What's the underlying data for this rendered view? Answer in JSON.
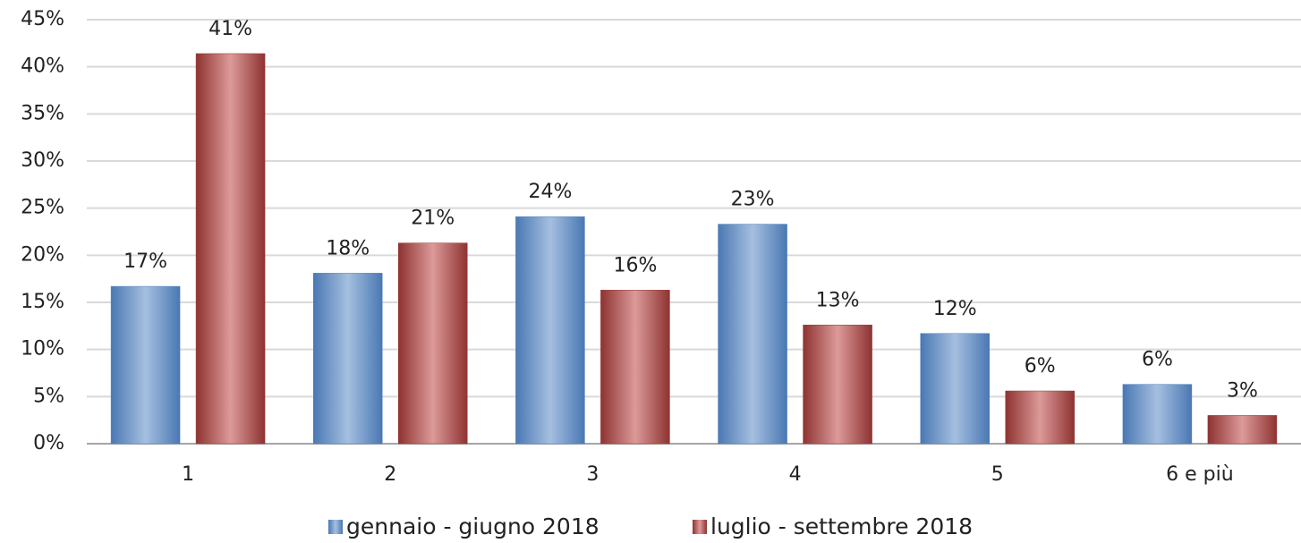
{
  "chart_data": {
    "type": "bar",
    "categories": [
      "1",
      "2",
      "3",
      "4",
      "5",
      "6 e più"
    ],
    "series": [
      {
        "name": "gennaio - giugno 2018",
        "color": "#4f81bd",
        "values": [
          16.7,
          18.1,
          24.1,
          23.3,
          11.7,
          6.3
        ],
        "value_labels": [
          "17%",
          "18%",
          "24%",
          "23%",
          "12%",
          "6%"
        ]
      },
      {
        "name": "luglio - settembre 2018",
        "color": "#953735",
        "values": [
          41.4,
          21.3,
          16.3,
          12.6,
          5.6,
          3.0
        ],
        "value_labels": [
          "41%",
          "21%",
          "16%",
          "13%",
          "6%",
          "3%"
        ]
      }
    ],
    "ylim": [
      0,
      45
    ],
    "yticks": [
      {
        "value": 0,
        "label": "0%"
      },
      {
        "value": 5,
        "label": "5%"
      },
      {
        "value": 10,
        "label": "10%"
      },
      {
        "value": 15,
        "label": "15%"
      },
      {
        "value": 20,
        "label": "20%"
      },
      {
        "value": 25,
        "label": "25%"
      },
      {
        "value": 30,
        "label": "30%"
      },
      {
        "value": 35,
        "label": "35%"
      },
      {
        "value": 40,
        "label": "40%"
      },
      {
        "value": 45,
        "label": "45%"
      }
    ],
    "grid": true,
    "legend": "bottom"
  }
}
